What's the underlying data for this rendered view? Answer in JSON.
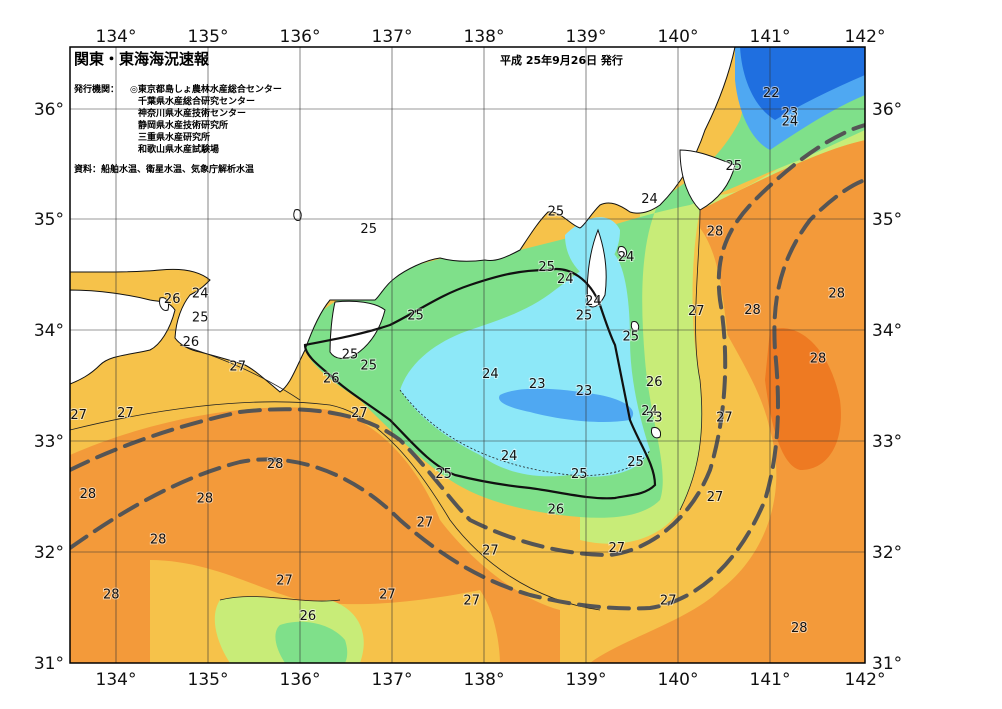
{
  "header": {
    "title": "関東・東海海況速報",
    "issue_date": "平成 25年9月26日 発行"
  },
  "info": {
    "issuers_label": "発行機関：",
    "issuers": [
      "◎東京都島しょ農林水産総合センター",
      "千葉県水産総合研究センター",
      "神奈川県水産技術センター",
      "静岡県水産技術研究所",
      "三重県水産研究所",
      "和歌山県水産試験場"
    ],
    "sources": "資料：船舶水温、衛星水温、気象庁解析水温"
  },
  "axes": {
    "lon_ticks": [
      "134°",
      "135°",
      "136°",
      "137°",
      "138°",
      "139°",
      "140°",
      "141°",
      "142°"
    ],
    "lat_ticks": [
      "36°",
      "35°",
      "34°",
      "33°",
      "32°",
      "31°"
    ]
  },
  "colors": {
    "land": "#ffffff",
    "t22": "#1f6fe0",
    "t23": "#4fa8f2",
    "t24": "#8de8f8",
    "t25": "#7fe08a",
    "t26": "#c8ec78",
    "t27": "#f6c24a",
    "t28": "#f39a3a",
    "t29": "#ee7a22"
  },
  "isotherm_labels": [
    {
      "t": "22",
      "lon": 141.0,
      "lat": 36.11
    },
    {
      "t": "23",
      "lon": 141.2,
      "lat": 35.93
    },
    {
      "t": "24",
      "lon": 141.2,
      "lat": 35.85
    },
    {
      "t": "25",
      "lon": 140.6,
      "lat": 35.45
    },
    {
      "t": "24",
      "lon": 139.7,
      "lat": 35.15
    },
    {
      "t": "25",
      "lon": 138.7,
      "lat": 35.04
    },
    {
      "t": "25",
      "lon": 136.7,
      "lat": 34.88
    },
    {
      "t": "28",
      "lon": 140.4,
      "lat": 34.86
    },
    {
      "t": "24",
      "lon": 139.45,
      "lat": 34.63
    },
    {
      "t": "25",
      "lon": 138.6,
      "lat": 34.54
    },
    {
      "t": "24",
      "lon": 138.8,
      "lat": 34.43
    },
    {
      "t": "24",
      "lon": 139.1,
      "lat": 34.23
    },
    {
      "t": "25",
      "lon": 139.0,
      "lat": 34.1
    },
    {
      "t": "28",
      "lon": 141.7,
      "lat": 34.3
    },
    {
      "t": "27",
      "lon": 140.2,
      "lat": 34.14
    },
    {
      "t": "28",
      "lon": 140.8,
      "lat": 34.15
    },
    {
      "t": "25",
      "lon": 137.2,
      "lat": 34.1
    },
    {
      "t": "24",
      "lon": 134.9,
      "lat": 34.3
    },
    {
      "t": "26",
      "lon": 134.6,
      "lat": 34.25
    },
    {
      "t": "25",
      "lon": 134.9,
      "lat": 34.08
    },
    {
      "t": "26",
      "lon": 134.8,
      "lat": 33.86
    },
    {
      "t": "25",
      "lon": 139.5,
      "lat": 33.91
    },
    {
      "t": "25",
      "lon": 136.5,
      "lat": 33.75
    },
    {
      "t": "25",
      "lon": 136.7,
      "lat": 33.65
    },
    {
      "t": "27",
      "lon": 135.3,
      "lat": 33.64
    },
    {
      "t": "28",
      "lon": 141.5,
      "lat": 33.71
    },
    {
      "t": "26",
      "lon": 136.3,
      "lat": 33.53
    },
    {
      "t": "24",
      "lon": 138.0,
      "lat": 33.57
    },
    {
      "t": "23",
      "lon": 138.5,
      "lat": 33.48
    },
    {
      "t": "23",
      "lon": 139.0,
      "lat": 33.42
    },
    {
      "t": "26",
      "lon": 139.75,
      "lat": 33.5
    },
    {
      "t": "24",
      "lon": 139.7,
      "lat": 33.24
    },
    {
      "t": "23",
      "lon": 139.75,
      "lat": 33.18
    },
    {
      "t": "27",
      "lon": 133.6,
      "lat": 33.2
    },
    {
      "t": "27",
      "lon": 134.1,
      "lat": 33.22
    },
    {
      "t": "27",
      "lon": 136.6,
      "lat": 33.22
    },
    {
      "t": "27",
      "lon": 140.5,
      "lat": 33.18
    },
    {
      "t": "24",
      "lon": 138.2,
      "lat": 32.83
    },
    {
      "t": "28",
      "lon": 135.7,
      "lat": 32.76
    },
    {
      "t": "25",
      "lon": 139.55,
      "lat": 32.78
    },
    {
      "t": "25",
      "lon": 137.5,
      "lat": 32.67
    },
    {
      "t": "25",
      "lon": 138.95,
      "lat": 32.67
    },
    {
      "t": "28",
      "lon": 133.7,
      "lat": 32.49
    },
    {
      "t": "28",
      "lon": 134.95,
      "lat": 32.45
    },
    {
      "t": "27",
      "lon": 140.4,
      "lat": 32.46
    },
    {
      "t": "26",
      "lon": 138.7,
      "lat": 32.35
    },
    {
      "t": "27",
      "lon": 137.3,
      "lat": 32.23
    },
    {
      "t": "28",
      "lon": 134.45,
      "lat": 32.08
    },
    {
      "t": "27",
      "lon": 138.0,
      "lat": 31.98
    },
    {
      "t": "27",
      "lon": 139.35,
      "lat": 32.0
    },
    {
      "t": "27",
      "lon": 135.8,
      "lat": 31.71
    },
    {
      "t": "27",
      "lon": 136.9,
      "lat": 31.58
    },
    {
      "t": "27",
      "lon": 137.8,
      "lat": 31.53
    },
    {
      "t": "28",
      "lon": 133.95,
      "lat": 31.58
    },
    {
      "t": "27",
      "lon": 139.9,
      "lat": 31.53
    },
    {
      "t": "26",
      "lon": 136.05,
      "lat": 31.39
    },
    {
      "t": "28",
      "lon": 141.3,
      "lat": 31.28
    }
  ]
}
